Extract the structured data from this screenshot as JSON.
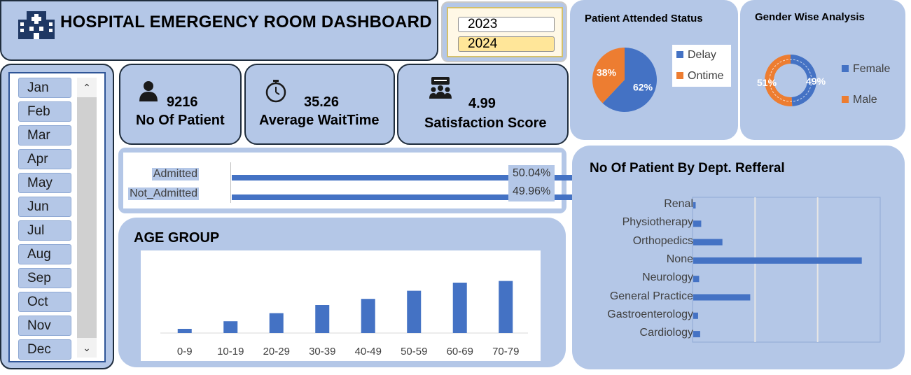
{
  "dashboard": {
    "title": "HOSPITAL EMERGENCY ROOM DASHBOARD",
    "hospital_icon": "hospital-building-icon"
  },
  "years": {
    "items": [
      {
        "label": "2023",
        "selected": false
      },
      {
        "label": "2024",
        "selected": true
      }
    ]
  },
  "months": {
    "items": [
      "Jan",
      "Feb",
      "Mar",
      "Apr",
      "May",
      "Jun",
      "Jul",
      "Aug",
      "Sep",
      "Oct",
      "Nov",
      "Dec"
    ],
    "scroll_up_icon": "chevron-up-icon",
    "scroll_down_icon": "chevron-down-icon"
  },
  "kpis": {
    "patients": {
      "value": "9216",
      "label": "No Of Patient",
      "icon": "person-icon"
    },
    "wait_time": {
      "value": "35.26",
      "label": "Average WaitTime",
      "icon": "stopwatch-icon"
    },
    "satisfaction": {
      "value": "4.99",
      "label": "Satisfaction Score",
      "icon": "group-review-icon"
    }
  },
  "colors": {
    "panel": "#b4c7e7",
    "blue": "#4472c4",
    "orange": "#ed7d31",
    "border": "#1f2d3d"
  },
  "chart_data": [
    {
      "type": "bar",
      "orientation": "horizontal",
      "categories": [
        "Admitted",
        "Not_Admitted"
      ],
      "values": [
        4612,
        4604
      ],
      "percent_labels": [
        "50.04%",
        "49.96%"
      ],
      "xlim": [
        0,
        4800
      ]
    },
    {
      "type": "bar",
      "title": "AGE GROUP",
      "categories": [
        "0-9",
        "10-19",
        "20-29",
        "30-39",
        "40-49",
        "50-59",
        "60-69",
        "70-79"
      ],
      "values": [
        75,
        210,
        355,
        500,
        610,
        755,
        900,
        930
      ],
      "ylim": [
        0,
        1000
      ]
    },
    {
      "type": "pie",
      "title": "Patient Attended Status",
      "categories": [
        "Delay",
        "Ontime"
      ],
      "values": [
        62,
        38
      ],
      "labels": [
        "62%",
        "38%"
      ],
      "legend": "right"
    },
    {
      "type": "pie",
      "donut": true,
      "title": "Gender Wise Analysis",
      "categories": [
        "Female",
        "Male"
      ],
      "values": [
        49,
        51
      ],
      "labels": [
        "49%",
        "51%"
      ],
      "legend": "right"
    },
    {
      "type": "bar",
      "orientation": "horizontal",
      "title": "No Of Patient By Dept. Refferal",
      "categories": [
        "Renal",
        "Physiotherapy",
        "Orthopedics",
        "None",
        "Neurology",
        "General Practice",
        "Gastroenterology",
        "Cardiology"
      ],
      "values": [
        70,
        230,
        840,
        4850,
        170,
        1640,
        140,
        200
      ],
      "xlim": [
        0,
        5400
      ],
      "grid": true
    }
  ]
}
